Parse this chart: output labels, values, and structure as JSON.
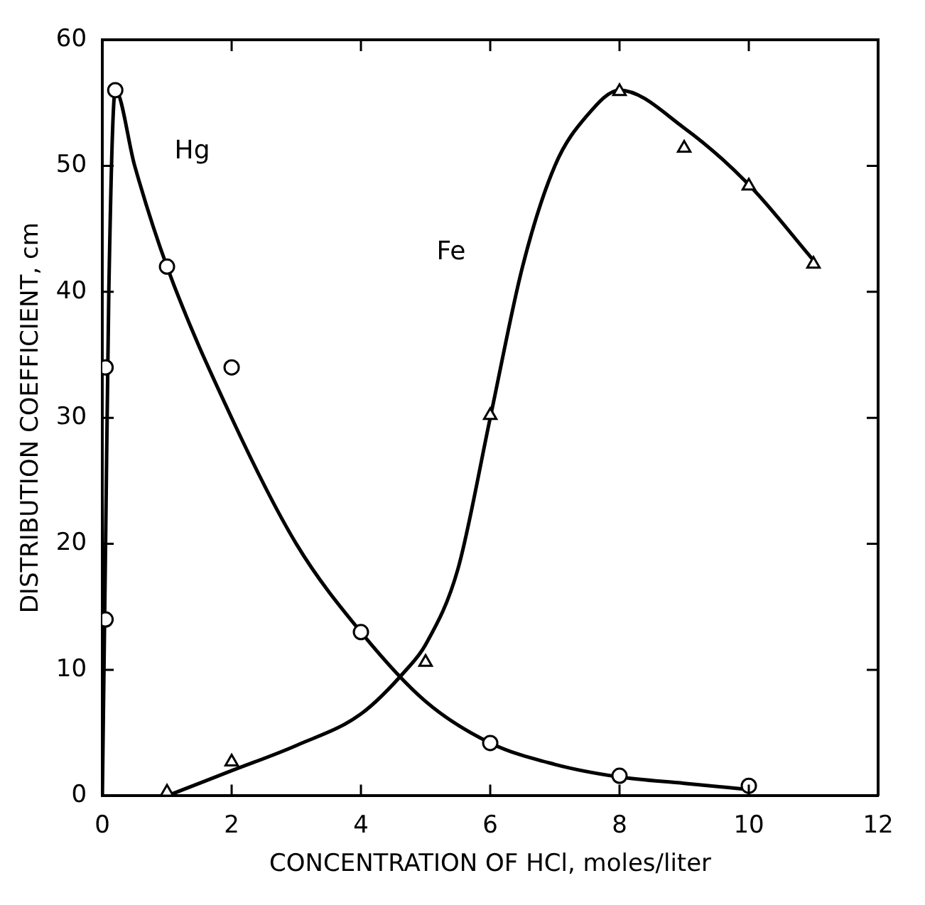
{
  "chart_data": {
    "type": "scatter",
    "xlabel": "CONCENTRATION OF HCl, moles/liter",
    "ylabel": "DISTRIBUTION COEFFICIENT, cm",
    "xlim": [
      0,
      12
    ],
    "xticks": [
      0,
      2,
      4,
      6,
      8,
      10,
      12
    ],
    "ylim": [
      0,
      60
    ],
    "yticks": [
      0,
      10,
      20,
      30,
      40,
      50,
      60
    ],
    "grid": false,
    "legend": false,
    "series": [
      {
        "type": "scatter",
        "marker": "circle",
        "color": "#000000",
        "x": [
          0.05,
          0.05,
          0.2,
          1,
          2,
          4,
          6,
          8,
          10
        ],
        "values": [
          14,
          34,
          56,
          42,
          34,
          13,
          4.2,
          1.6,
          0.8
        ]
      },
      {
        "type": "scatter",
        "marker": "triangle",
        "color": "#000000",
        "x": [
          1,
          2,
          5,
          6,
          8,
          9,
          10,
          11
        ],
        "values": [
          0.3,
          2.7,
          10.6,
          30.2,
          55.9,
          51.4,
          48.4,
          42.2
        ]
      },
      {
        "type": "line",
        "name": "Hg",
        "color": "#000000",
        "x": [
          0,
          0.05,
          0.1,
          0.2,
          0.5,
          1,
          2,
          3,
          4,
          5,
          6,
          7,
          8,
          9,
          10
        ],
        "values": [
          0,
          20,
          40,
          56,
          50,
          42,
          30,
          20,
          13,
          7.5,
          4.2,
          2.5,
          1.5,
          1,
          0.5
        ]
      },
      {
        "type": "line",
        "name": "Fe",
        "color": "#000000",
        "x": [
          1,
          2,
          3,
          4,
          4.7,
          5,
          5.5,
          6,
          6.5,
          7,
          7.5,
          8,
          9,
          10,
          11
        ],
        "values": [
          0,
          2,
          4,
          6.5,
          10,
          12,
          18,
          30,
          42,
          50,
          54,
          56,
          53,
          48.5,
          42.5
        ]
      }
    ]
  }
}
